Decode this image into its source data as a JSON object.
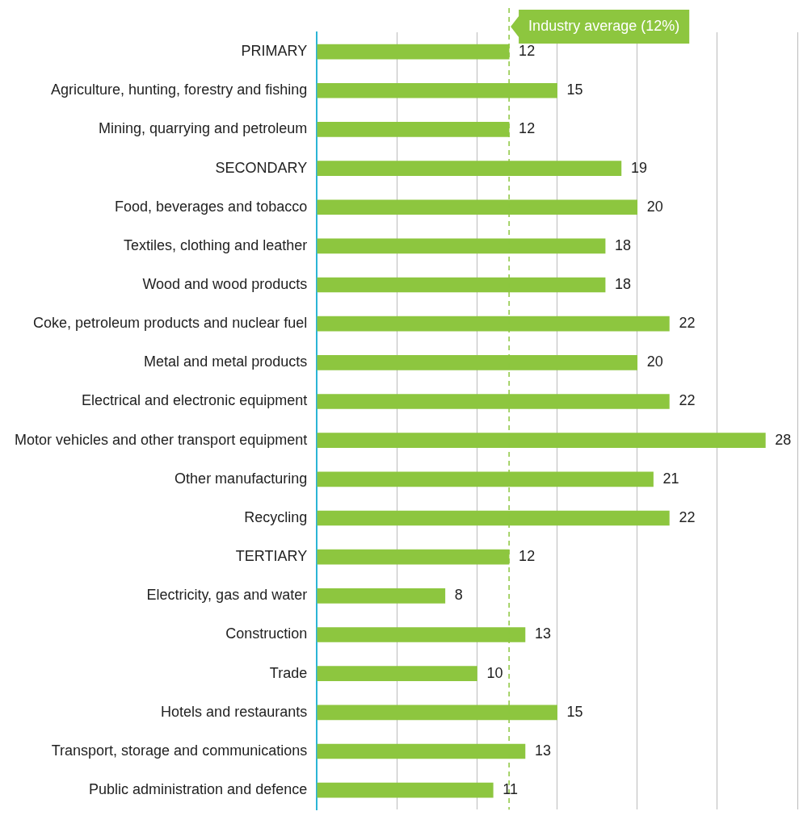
{
  "chart_data": {
    "type": "bar",
    "orientation": "horizontal",
    "categories": [
      "PRIMARY",
      "Agriculture, hunting, forestry and fishing",
      "Mining, quarrying and petroleum",
      "SECONDARY",
      "Food, beverages and tobacco",
      "Textiles, clothing and leather",
      "Wood and wood products",
      "Coke, petroleum products and nuclear fuel",
      "Metal and metal products",
      "Electrical and electronic equipment",
      "Motor vehicles and other transport equipment",
      "Other manufacturing",
      "Recycling",
      "TERTIARY",
      "Electricity, gas and water",
      "Construction",
      "Trade",
      "Hotels and restaurants",
      "Transport, storage and communications",
      "Public administration and defence"
    ],
    "values": [
      12,
      15,
      12,
      19,
      20,
      18,
      18,
      22,
      20,
      22,
      28,
      21,
      22,
      12,
      8,
      13,
      10,
      15,
      13,
      11
    ],
    "color": "#8dc63f",
    "data_labels": true,
    "xlim": [
      0,
      30
    ],
    "xticks": [
      {
        "value": 0,
        "label": null
      },
      {
        "value": 5,
        "label": null
      },
      {
        "value": 10,
        "label": null
      },
      {
        "value": 15,
        "label": null
      },
      {
        "value": 20,
        "label": null
      },
      {
        "value": 25,
        "label": null
      },
      {
        "value": 30,
        "label": null
      }
    ],
    "tick_labels": "y",
    "grid": "x",
    "legend": false,
    "ref_lines": [
      {
        "axis": "x",
        "value": 12,
        "label": "Industry average (12%)",
        "color": "#8dc63f",
        "line_style": "dashed"
      }
    ]
  }
}
